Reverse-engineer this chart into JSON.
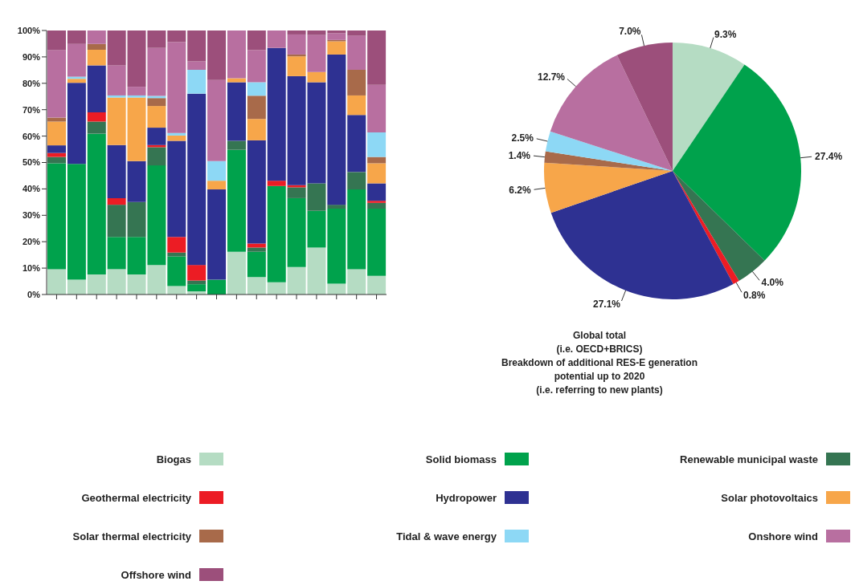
{
  "chart_data": [
    {
      "type": "bar",
      "stacked": true,
      "categories": [
        null,
        null,
        null,
        null,
        null,
        null,
        null,
        null,
        null,
        null,
        null,
        null,
        null,
        null,
        null,
        null,
        null
      ],
      "ylim": [
        0,
        100
      ],
      "yticks": [
        {
          "value": 0,
          "label": "0%"
        },
        {
          "value": 10,
          "label": "10%"
        },
        {
          "value": 20,
          "label": "20%"
        },
        {
          "value": 30,
          "label": "30%"
        },
        {
          "value": 40,
          "label": "40%"
        },
        {
          "value": 50,
          "label": "50%"
        },
        {
          "value": 60,
          "label": "60%"
        },
        {
          "value": 70,
          "label": "70%"
        },
        {
          "value": 80,
          "label": "80%"
        },
        {
          "value": 90,
          "label": "90%"
        },
        {
          "value": 100,
          "label": "100%"
        }
      ],
      "grid": false,
      "legend": "bottom",
      "series": [
        {
          "name": "Biogas",
          "color": "#b5dcc3",
          "values": [
            9.6,
            5.6,
            7.6,
            9.6,
            7.6,
            11.2,
            3.2,
            1.2,
            0,
            16.2,
            6.6,
            4.6,
            10.4,
            17.8,
            4.1,
            9.6,
            7.1
          ]
        },
        {
          "name": "Solid biomass",
          "color": "#00a24c",
          "values": [
            40.1,
            43.9,
            53.3,
            12.2,
            14.2,
            37.7,
            11.2,
            2.7,
            5.6,
            38.6,
            9.6,
            36.5,
            26.1,
            13.9,
            28.4,
            30.2,
            25.4
          ]
        },
        {
          "name": "Renewable municipal waste",
          "color": "#357552",
          "values": [
            2.4,
            0,
            4.6,
            12.2,
            13.2,
            6.9,
            1.5,
            1.4,
            0,
            3.4,
            1.6,
            0,
            4.1,
            10.4,
            1.5,
            6.6,
            2.2
          ]
        },
        {
          "name": "Geothermal electricity",
          "color": "#ec1c24",
          "values": [
            1.5,
            0,
            3.5,
            2.5,
            0,
            0.8,
            5.9,
            5.9,
            0,
            0,
            1.5,
            2.0,
            0.8,
            0,
            0,
            0,
            0.8
          ]
        },
        {
          "name": "Hydropower",
          "color": "#2e3192",
          "values": [
            2.9,
            30.7,
            17.8,
            20.1,
            15.5,
            6.6,
            36.4,
            64.9,
            34.2,
            22.2,
            39.1,
            50.3,
            41.3,
            38.3,
            56.9,
            21.6,
            6.6
          ]
        },
        {
          "name": "Solar photovoltaics",
          "color": "#f7a64a",
          "values": [
            9.0,
            1.5,
            5.9,
            18.0,
            24.1,
            8.2,
            2.0,
            0,
            3.3,
            1.5,
            8.1,
            0,
            7.5,
            3.9,
            5.0,
            7.4,
            7.6
          ]
        },
        {
          "name": "Solar thermal electricity",
          "color": "#a86a4a",
          "values": [
            1.5,
            0,
            2.2,
            0,
            0,
            3.0,
            0,
            0,
            0,
            0,
            8.8,
            0,
            0.7,
            0,
            0.5,
            9.7,
            2.4
          ]
        },
        {
          "name": "Tidal & wave energy",
          "color": "#8dd8f5",
          "values": [
            0,
            0.8,
            0,
            0.8,
            0.8,
            0.8,
            1.0,
            9.0,
            7.4,
            0,
            5.1,
            0,
            0,
            0,
            0,
            0,
            9.3
          ]
        },
        {
          "name": "Onshore wind",
          "color": "#b86fa0",
          "values": [
            25.6,
            12.4,
            5.1,
            11.4,
            3.3,
            18.2,
            34.4,
            3.2,
            30.7,
            18.1,
            12.2,
            6.6,
            7.6,
            14.0,
            2.6,
            12.9,
            18.0
          ]
        },
        {
          "name": "Offshore wind",
          "color": "#9c4f7b",
          "values": [
            7.4,
            5.1,
            0,
            13.2,
            21.3,
            6.6,
            4.4,
            11.7,
            18.8,
            0,
            7.4,
            0,
            1.5,
            1.7,
            1.0,
            2.0,
            20.6
          ]
        }
      ]
    },
    {
      "type": "pie",
      "title": "Global total\n(i.e. OECD+BRICS)",
      "subtitle": "Breakdown of additional RES-E generation\npotential up to 2020\n(i.e. referring to new plants)",
      "categories": [
        null,
        null,
        null,
        null,
        null,
        null,
        null,
        null,
        null,
        null
      ],
      "values": [
        9.3,
        27.4,
        4.0,
        0.8,
        27.1,
        6.2,
        1.4,
        2.5,
        12.7,
        7.0
      ],
      "value_labels": [
        "9.3%",
        "27.4%",
        "4.0%",
        "0.8%",
        "27.1%",
        "6.2%",
        "1.4%",
        "2.5%",
        "12.7%",
        "7.0%"
      ],
      "colors": [
        "#b5dcc3",
        "#00a24c",
        "#357552",
        "#ec1c24",
        "#2e3192",
        "#f7a64a",
        "#a86a4a",
        "#8dd8f5",
        "#b86fa0",
        "#9c4f7b"
      ]
    }
  ]
}
